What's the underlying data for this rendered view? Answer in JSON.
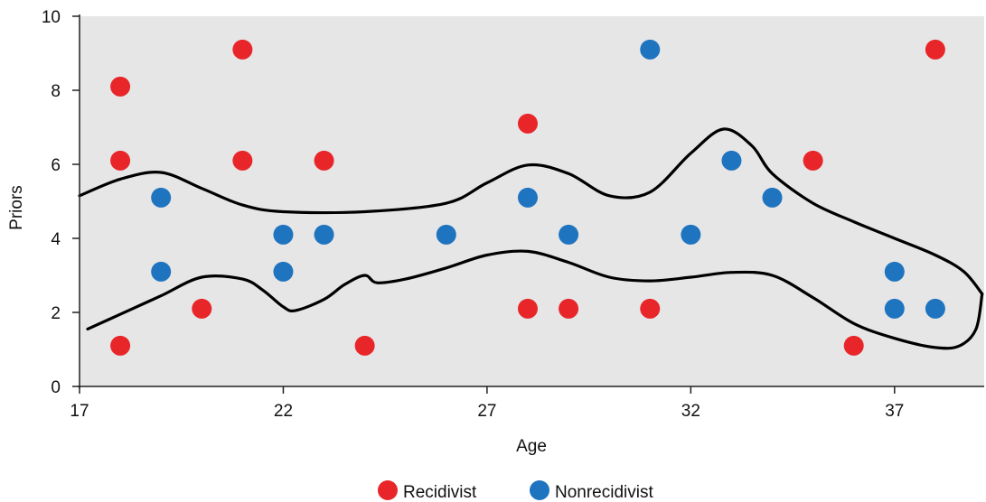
{
  "chart_data": {
    "type": "scatter",
    "xlabel": "Age",
    "ylabel": "Priors",
    "xlim": [
      17,
      39.2
    ],
    "ylim": [
      0,
      10
    ],
    "x_ticks": [
      17,
      22,
      27,
      32,
      37
    ],
    "y_ticks": [
      0,
      2,
      4,
      6,
      8,
      10
    ],
    "grid": false,
    "legend_position": "bottom",
    "colors": {
      "plot_background": "#e6e6e6",
      "axis": "#222222",
      "boundary": "#000000"
    },
    "series": [
      {
        "name": "Recidivist",
        "color": "#e8262a",
        "points": [
          {
            "x": 18,
            "y": 8.1
          },
          {
            "x": 18,
            "y": 6.1
          },
          {
            "x": 18,
            "y": 1.1
          },
          {
            "x": 20,
            "y": 2.1
          },
          {
            "x": 21,
            "y": 9.1
          },
          {
            "x": 21,
            "y": 6.1
          },
          {
            "x": 23,
            "y": 6.1
          },
          {
            "x": 24,
            "y": 1.1
          },
          {
            "x": 28,
            "y": 7.1
          },
          {
            "x": 28,
            "y": 2.1
          },
          {
            "x": 29,
            "y": 2.1
          },
          {
            "x": 31,
            "y": 2.1
          },
          {
            "x": 35,
            "y": 6.1
          },
          {
            "x": 36,
            "y": 1.1
          },
          {
            "x": 38,
            "y": 9.1
          }
        ]
      },
      {
        "name": "Nonrecidivist",
        "color": "#1f74c0",
        "points": [
          {
            "x": 19,
            "y": 5.1
          },
          {
            "x": 19,
            "y": 3.1
          },
          {
            "x": 22,
            "y": 4.1
          },
          {
            "x": 22,
            "y": 3.1
          },
          {
            "x": 23,
            "y": 4.1
          },
          {
            "x": 26,
            "y": 4.1
          },
          {
            "x": 28,
            "y": 5.1
          },
          {
            "x": 29,
            "y": 4.1
          },
          {
            "x": 31,
            "y": 9.1
          },
          {
            "x": 32,
            "y": 4.1
          },
          {
            "x": 33,
            "y": 6.1
          },
          {
            "x": 34,
            "y": 5.1
          },
          {
            "x": 37,
            "y": 3.1
          },
          {
            "x": 37,
            "y": 2.1
          },
          {
            "x": 38,
            "y": 2.1
          }
        ]
      }
    ],
    "decision_boundaries": [
      {
        "name": "upper",
        "points": [
          [
            17,
            5.15
          ],
          [
            18,
            5.6
          ],
          [
            19,
            5.78
          ],
          [
            20,
            5.35
          ],
          [
            21,
            4.9
          ],
          [
            22,
            4.72
          ],
          [
            24,
            4.72
          ],
          [
            26,
            4.95
          ],
          [
            27,
            5.5
          ],
          [
            28,
            5.98
          ],
          [
            29,
            5.75
          ],
          [
            30,
            5.15
          ],
          [
            31,
            5.25
          ],
          [
            32,
            6.3
          ],
          [
            32.8,
            6.95
          ],
          [
            33.5,
            6.5
          ],
          [
            34,
            5.75
          ],
          [
            35,
            4.95
          ],
          [
            36,
            4.45
          ],
          [
            37,
            4.0
          ],
          [
            38,
            3.55
          ],
          [
            38.7,
            3.1
          ],
          [
            39.15,
            2.5
          ]
        ]
      },
      {
        "name": "lower",
        "points": [
          [
            39.15,
            2.5
          ],
          [
            39.0,
            1.55
          ],
          [
            38.6,
            1.1
          ],
          [
            38,
            1.05
          ],
          [
            37,
            1.3
          ],
          [
            36,
            1.7
          ],
          [
            35,
            2.4
          ],
          [
            34,
            3.0
          ],
          [
            33,
            3.08
          ],
          [
            32,
            2.95
          ],
          [
            31,
            2.85
          ],
          [
            30,
            2.95
          ],
          [
            29,
            3.35
          ],
          [
            28,
            3.65
          ],
          [
            27,
            3.55
          ],
          [
            26,
            3.2
          ],
          [
            25,
            2.9
          ],
          [
            24.3,
            2.8
          ],
          [
            24,
            3.0
          ],
          [
            23.5,
            2.75
          ],
          [
            23,
            2.35
          ],
          [
            22.3,
            2.05
          ],
          [
            22,
            2.15
          ],
          [
            21.5,
            2.6
          ],
          [
            21,
            2.9
          ],
          [
            20,
            2.95
          ],
          [
            19,
            2.45
          ],
          [
            18,
            1.95
          ],
          [
            17.2,
            1.55
          ]
        ]
      }
    ]
  }
}
